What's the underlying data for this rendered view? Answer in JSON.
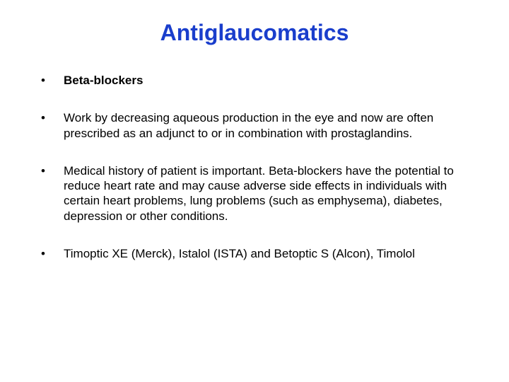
{
  "slide": {
    "title": "Antiglaucomatics",
    "title_color": "#1a3ecc",
    "title_fontsize": 32,
    "body_fontsize": 17,
    "body_color": "#000000",
    "background_color": "#ffffff",
    "bullets": [
      {
        "text": "Beta-blockers",
        "bold": true
      },
      {
        "text": "Work by decreasing aqueous production in the eye and now are often prescribed as an adjunct to or in combination with prostaglandins.",
        "bold": false
      },
      {
        "text": "Medical history of patient is important. Beta-blockers have the potential to reduce heart rate and may cause adverse side effects in individuals with certain heart problems, lung problems (such as emphysema), diabetes, depression or other conditions.",
        "bold": false
      },
      {
        "text": "Timoptic XE (Merck), Istalol (ISTA) and Betoptic S (Alcon), Timolol",
        "bold": false
      }
    ]
  }
}
